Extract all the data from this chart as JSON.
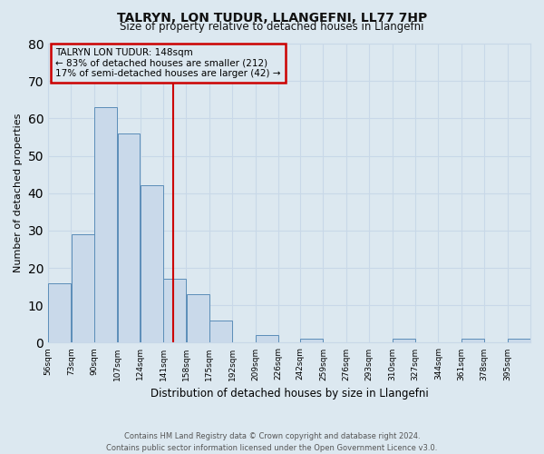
{
  "title": "TALRYN, LON TUDUR, LLANGEFNI, LL77 7HP",
  "subtitle": "Size of property relative to detached houses in Llangefni",
  "xlabel": "Distribution of detached houses by size in Llangefni",
  "ylabel": "Number of detached properties",
  "bin_labels": [
    "56sqm",
    "73sqm",
    "90sqm",
    "107sqm",
    "124sqm",
    "141sqm",
    "158sqm",
    "175sqm",
    "192sqm",
    "209sqm",
    "226sqm",
    "242sqm",
    "259sqm",
    "276sqm",
    "293sqm",
    "310sqm",
    "327sqm",
    "344sqm",
    "361sqm",
    "378sqm",
    "395sqm"
  ],
  "bin_edges": [
    56,
    73,
    90,
    107,
    124,
    141,
    158,
    175,
    192,
    209,
    226,
    242,
    259,
    276,
    293,
    310,
    327,
    344,
    361,
    378,
    395
  ],
  "counts": [
    16,
    29,
    63,
    56,
    42,
    17,
    13,
    6,
    0,
    2,
    0,
    1,
    0,
    0,
    0,
    1,
    0,
    0,
    1,
    0,
    1
  ],
  "bar_color": "#c9d9ea",
  "bar_edge_color": "#5b8db8",
  "property_line_x": 148,
  "annotation_title": "TALRYN LON TUDUR: 148sqm",
  "annotation_line1": "← 83% of detached houses are smaller (212)",
  "annotation_line2": "17% of semi-detached houses are larger (42) →",
  "annotation_box_color": "#cc0000",
  "vline_color": "#cc0000",
  "ylim": [
    0,
    80
  ],
  "yticks": [
    0,
    10,
    20,
    30,
    40,
    50,
    60,
    70,
    80
  ],
  "grid_color": "#c8d8e8",
  "bg_color": "#dce8f0",
  "footer1": "Contains HM Land Registry data © Crown copyright and database right 2024.",
  "footer2": "Contains public sector information licensed under the Open Government Licence v3.0."
}
